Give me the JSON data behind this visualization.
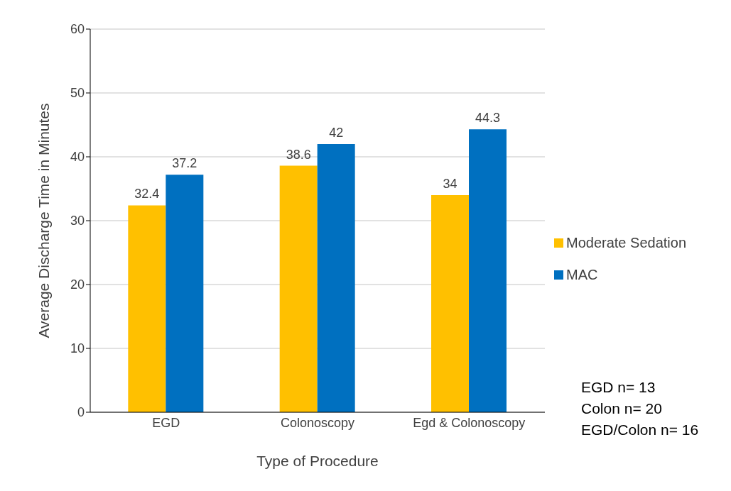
{
  "chart_data": {
    "type": "bar",
    "xlabel": "Type of Procedure",
    "ylabel": "Average Discharge Time in Minutes",
    "categories": [
      "EGD",
      "Colonoscopy",
      "Egd & Colonoscopy"
    ],
    "series": [
      {
        "name": "Moderate Sedation",
        "color": "#ffc000",
        "values": [
          32.4,
          38.6,
          34
        ]
      },
      {
        "name": "MAC",
        "color": "#0070c0",
        "values": [
          37.2,
          42,
          44.3
        ]
      }
    ],
    "ylim": [
      0,
      60
    ],
    "yticks": [
      0,
      10,
      20,
      30,
      40,
      50,
      60
    ],
    "grid": "y",
    "legend": "right",
    "data_labels": true,
    "annotations": [
      "EGD n= 13",
      "Colon n= 20",
      "EGD/Colon n= 16"
    ]
  }
}
